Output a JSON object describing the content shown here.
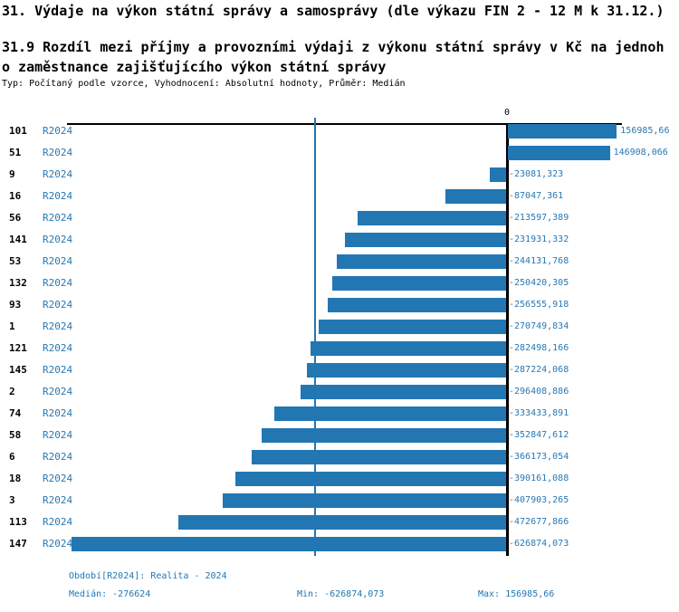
{
  "header": {
    "title": "31. Výdaje na výkon státní správy a samosprávy (dle výkazu FIN 2 - 12 M k 31.12.)",
    "subtitle_line1": "31.9 Rozdíl mezi příjmy a provozními výdaji z výkonu státní správy v Kč na jednoh",
    "subtitle_line2": "o zaměstnance zajišťujícího výkon státní správy",
    "meta": "Typ: Počítaný podle vzorce, Vyhodnocení: Absolutní hodnoty, Průměr: Medián"
  },
  "chart_data": {
    "type": "bar",
    "orientation": "horizontal",
    "title": "31.9 Rozdíl mezi příjmy a provozními výdaji z výkonu státní správy v Kč na jednoho zaměstnance zajišťujícího výkon státní správy",
    "axis_zero_label": "0",
    "series_label": "R2024",
    "categories": [
      "101",
      "51",
      "9",
      "16",
      "56",
      "141",
      "53",
      "132",
      "93",
      "1",
      "121",
      "145",
      "2",
      "74",
      "58",
      "6",
      "18",
      "3",
      "113",
      "147"
    ],
    "values": [
      156985.66,
      146908.066,
      -23081.323,
      -87047.361,
      -213597.389,
      -231931.332,
      -244131.768,
      -250420.305,
      -256555.918,
      -270749.834,
      -282498.166,
      -287224.068,
      -296408.886,
      -333433.891,
      -352847.612,
      -366173.054,
      -390161.088,
      -407903.265,
      -472677.866,
      -626874.073
    ],
    "value_labels": [
      "156985,66",
      "146908,066",
      "-23081,323",
      "-87047,361",
      "-213597,389",
      "-231931,332",
      "-244131,768",
      "-250420,305",
      "-256555,918",
      "-270749,834",
      "-282498,166",
      "-287224,068",
      "-296408,886",
      "-333433,891",
      "-352847,612",
      "-366173,054",
      "-390161,088",
      "-407903,265",
      "-472677,866",
      "-626874,073"
    ],
    "median_value": -276624,
    "xlim": [
      -634000,
      166000
    ],
    "grid": false,
    "legend": "none",
    "bar_color": "#2277b3",
    "median_line_color": "#2277b3",
    "value_text_color": "#2878b4"
  },
  "footer": {
    "period": "Období[R2024]: Realita - 2024",
    "median": "Medián: -276624",
    "min": "Min: -626874,073",
    "max": "Max: 156985,66"
  }
}
